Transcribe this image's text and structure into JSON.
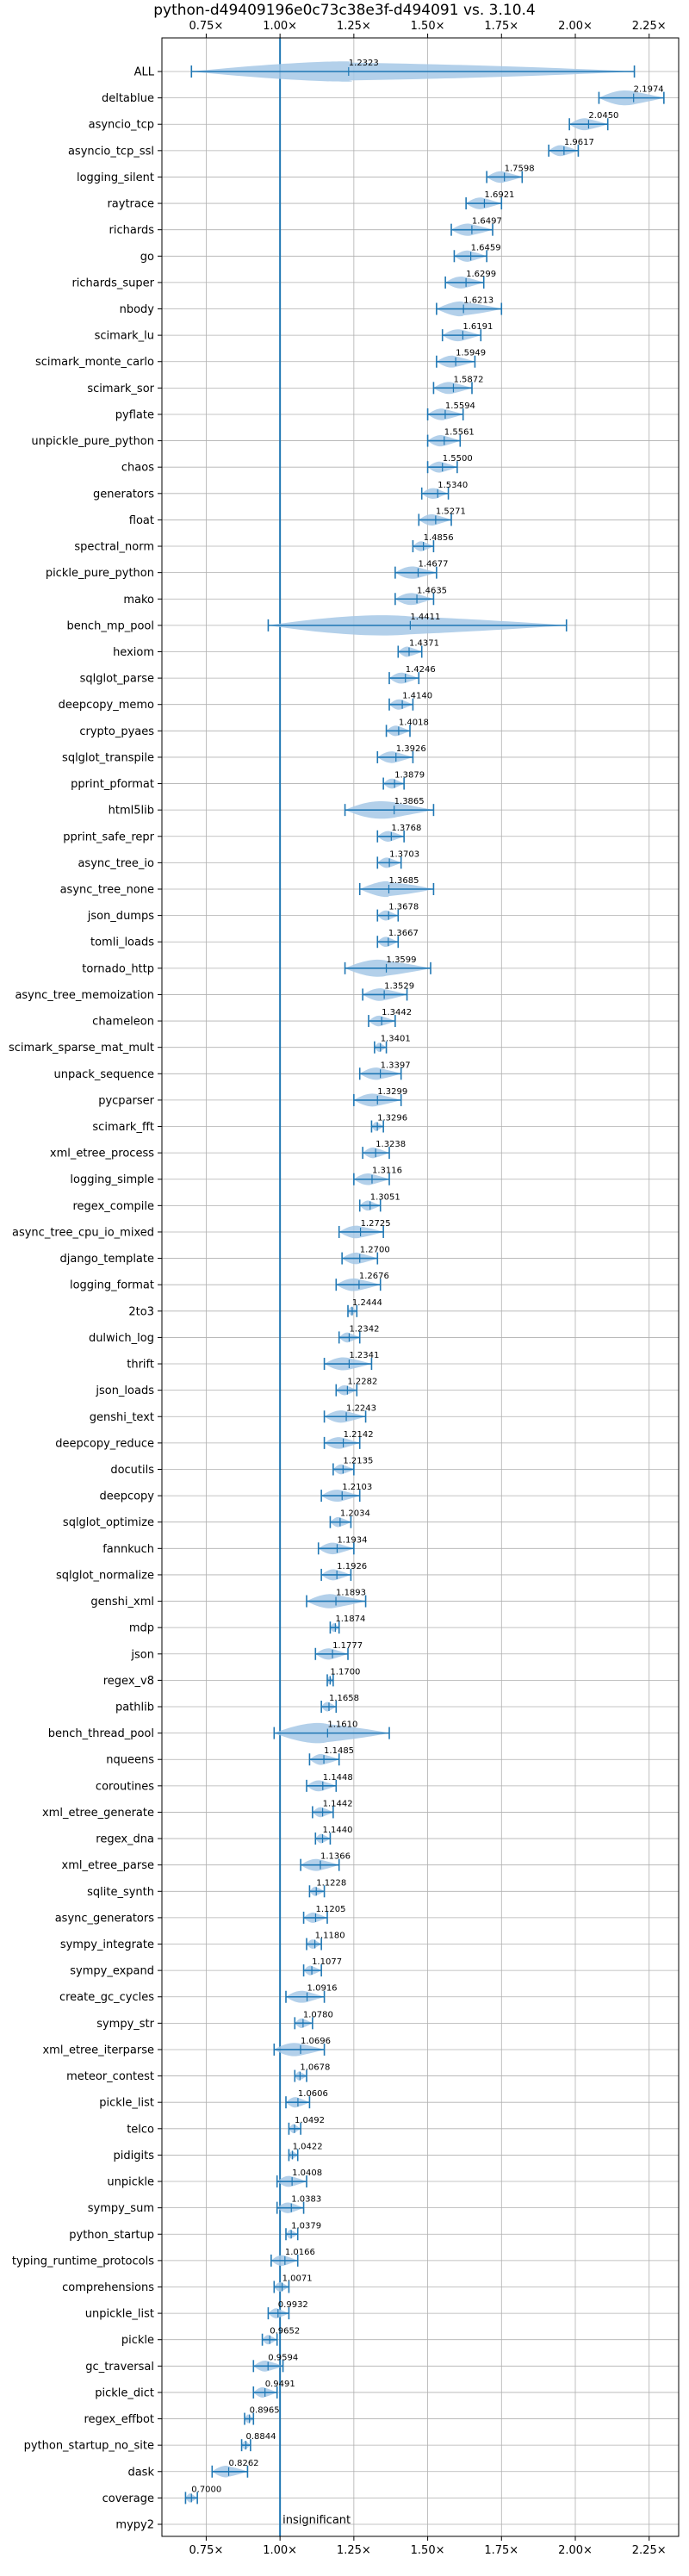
{
  "chart_data": {
    "type": "violin",
    "title": "python-d49409196e0c73c38e3f-d494091 vs. 3.10.4",
    "xlim": [
      0.6,
      2.35
    ],
    "xticks": [
      0.75,
      1.0,
      1.25,
      1.5,
      1.75,
      2.0,
      2.25
    ],
    "xtick_labels": [
      "0.75×",
      "1.00×",
      "1.25×",
      "1.50×",
      "1.75×",
      "2.00×",
      "2.25×"
    ],
    "ticks_top_and_bottom": true,
    "grid": true,
    "reference_line": {
      "x": 1.0,
      "label": "insignificant"
    },
    "accent_color": "#1f77b4",
    "violin_color": "#a6c8e6",
    "categories": [
      {
        "name": "ALL",
        "label": "1.2323",
        "median": 1.2323,
        "lo": 0.7,
        "hi": 2.2
      },
      {
        "name": "deltablue",
        "label": "2.1974",
        "median": 2.1974,
        "lo": 2.08,
        "hi": 2.3
      },
      {
        "name": "asyncio_tcp",
        "label": "2.0450",
        "median": 2.045,
        "lo": 1.98,
        "hi": 2.11
      },
      {
        "name": "asyncio_tcp_ssl",
        "label": "1.9617",
        "median": 1.9617,
        "lo": 1.91,
        "hi": 2.01
      },
      {
        "name": "logging_silent",
        "label": "1.7598",
        "median": 1.7598,
        "lo": 1.7,
        "hi": 1.82
      },
      {
        "name": "raytrace",
        "label": "1.6921",
        "median": 1.6921,
        "lo": 1.63,
        "hi": 1.75
      },
      {
        "name": "richards",
        "label": "1.6497",
        "median": 1.6497,
        "lo": 1.58,
        "hi": 1.72
      },
      {
        "name": "go",
        "label": "1.6459",
        "median": 1.6459,
        "lo": 1.59,
        "hi": 1.7
      },
      {
        "name": "richards_super",
        "label": "1.6299",
        "median": 1.6299,
        "lo": 1.56,
        "hi": 1.69
      },
      {
        "name": "nbody",
        "label": "1.6213",
        "median": 1.6213,
        "lo": 1.53,
        "hi": 1.75
      },
      {
        "name": "scimark_lu",
        "label": "1.6191",
        "median": 1.6191,
        "lo": 1.55,
        "hi": 1.68
      },
      {
        "name": "scimark_monte_carlo",
        "label": "1.5949",
        "median": 1.5949,
        "lo": 1.53,
        "hi": 1.66
      },
      {
        "name": "scimark_sor",
        "label": "1.5872",
        "median": 1.5872,
        "lo": 1.52,
        "hi": 1.65
      },
      {
        "name": "pyflate",
        "label": "1.5594",
        "median": 1.5594,
        "lo": 1.5,
        "hi": 1.62
      },
      {
        "name": "unpickle_pure_python",
        "label": "1.5561",
        "median": 1.5561,
        "lo": 1.5,
        "hi": 1.61
      },
      {
        "name": "chaos",
        "label": "1.5500",
        "median": 1.55,
        "lo": 1.5,
        "hi": 1.6
      },
      {
        "name": "generators",
        "label": "1.5340",
        "median": 1.534,
        "lo": 1.48,
        "hi": 1.57
      },
      {
        "name": "float",
        "label": "1.5271",
        "median": 1.5271,
        "lo": 1.47,
        "hi": 1.58
      },
      {
        "name": "spectral_norm",
        "label": "1.4856",
        "median": 1.4856,
        "lo": 1.45,
        "hi": 1.52
      },
      {
        "name": "pickle_pure_python",
        "label": "1.4677",
        "median": 1.4677,
        "lo": 1.39,
        "hi": 1.53
      },
      {
        "name": "mako",
        "label": "1.4635",
        "median": 1.4635,
        "lo": 1.39,
        "hi": 1.52
      },
      {
        "name": "bench_mp_pool",
        "label": "1.4411",
        "median": 1.4411,
        "lo": 0.96,
        "hi": 1.97
      },
      {
        "name": "hexiom",
        "label": "1.4371",
        "median": 1.4371,
        "lo": 1.4,
        "hi": 1.48
      },
      {
        "name": "sqlglot_parse",
        "label": "1.4246",
        "median": 1.4246,
        "lo": 1.37,
        "hi": 1.47
      },
      {
        "name": "deepcopy_memo",
        "label": "1.4140",
        "median": 1.414,
        "lo": 1.37,
        "hi": 1.45
      },
      {
        "name": "crypto_pyaes",
        "label": "1.4018",
        "median": 1.4018,
        "lo": 1.36,
        "hi": 1.44
      },
      {
        "name": "sqlglot_transpile",
        "label": "1.3926",
        "median": 1.3926,
        "lo": 1.33,
        "hi": 1.45
      },
      {
        "name": "pprint_pformat",
        "label": "1.3879",
        "median": 1.3879,
        "lo": 1.35,
        "hi": 1.42
      },
      {
        "name": "html5lib",
        "label": "1.3865",
        "median": 1.3865,
        "lo": 1.22,
        "hi": 1.52
      },
      {
        "name": "pprint_safe_repr",
        "label": "1.3768",
        "median": 1.3768,
        "lo": 1.33,
        "hi": 1.42
      },
      {
        "name": "async_tree_io",
        "label": "1.3703",
        "median": 1.3703,
        "lo": 1.33,
        "hi": 1.41
      },
      {
        "name": "async_tree_none",
        "label": "1.3685",
        "median": 1.3685,
        "lo": 1.27,
        "hi": 1.52
      },
      {
        "name": "json_dumps",
        "label": "1.3678",
        "median": 1.3678,
        "lo": 1.33,
        "hi": 1.4
      },
      {
        "name": "tomli_loads",
        "label": "1.3667",
        "median": 1.3667,
        "lo": 1.33,
        "hi": 1.4
      },
      {
        "name": "tornado_http",
        "label": "1.3599",
        "median": 1.3599,
        "lo": 1.22,
        "hi": 1.51
      },
      {
        "name": "async_tree_memoization",
        "label": "1.3529",
        "median": 1.3529,
        "lo": 1.28,
        "hi": 1.43
      },
      {
        "name": "chameleon",
        "label": "1.3442",
        "median": 1.3442,
        "lo": 1.3,
        "hi": 1.39
      },
      {
        "name": "scimark_sparse_mat_mult",
        "label": "1.3401",
        "median": 1.3401,
        "lo": 1.32,
        "hi": 1.36
      },
      {
        "name": "unpack_sequence",
        "label": "1.3397",
        "median": 1.3397,
        "lo": 1.27,
        "hi": 1.41
      },
      {
        "name": "pycparser",
        "label": "1.3299",
        "median": 1.3299,
        "lo": 1.25,
        "hi": 1.41
      },
      {
        "name": "scimark_fft",
        "label": "1.3296",
        "median": 1.3296,
        "lo": 1.31,
        "hi": 1.35
      },
      {
        "name": "xml_etree_process",
        "label": "1.3238",
        "median": 1.3238,
        "lo": 1.28,
        "hi": 1.37
      },
      {
        "name": "logging_simple",
        "label": "1.3116",
        "median": 1.3116,
        "lo": 1.25,
        "hi": 1.37
      },
      {
        "name": "regex_compile",
        "label": "1.3051",
        "median": 1.3051,
        "lo": 1.27,
        "hi": 1.34
      },
      {
        "name": "async_tree_cpu_io_mixed",
        "label": "1.2725",
        "median": 1.2725,
        "lo": 1.2,
        "hi": 1.35
      },
      {
        "name": "django_template",
        "label": "1.2700",
        "median": 1.27,
        "lo": 1.21,
        "hi": 1.33
      },
      {
        "name": "logging_format",
        "label": "1.2676",
        "median": 1.2676,
        "lo": 1.19,
        "hi": 1.34
      },
      {
        "name": "2to3",
        "label": "1.2444",
        "median": 1.2444,
        "lo": 1.23,
        "hi": 1.26
      },
      {
        "name": "dulwich_log",
        "label": "1.2342",
        "median": 1.2342,
        "lo": 1.2,
        "hi": 1.27
      },
      {
        "name": "thrift",
        "label": "1.2341",
        "median": 1.2341,
        "lo": 1.15,
        "hi": 1.31
      },
      {
        "name": "json_loads",
        "label": "1.2282",
        "median": 1.2282,
        "lo": 1.19,
        "hi": 1.26
      },
      {
        "name": "genshi_text",
        "label": "1.2243",
        "median": 1.2243,
        "lo": 1.15,
        "hi": 1.29
      },
      {
        "name": "deepcopy_reduce",
        "label": "1.2142",
        "median": 1.2142,
        "lo": 1.15,
        "hi": 1.27
      },
      {
        "name": "docutils",
        "label": "1.2135",
        "median": 1.2135,
        "lo": 1.18,
        "hi": 1.25
      },
      {
        "name": "deepcopy",
        "label": "1.2103",
        "median": 1.2103,
        "lo": 1.14,
        "hi": 1.27
      },
      {
        "name": "sqlglot_optimize",
        "label": "1.2034",
        "median": 1.2034,
        "lo": 1.17,
        "hi": 1.24
      },
      {
        "name": "fannkuch",
        "label": "1.1934",
        "median": 1.1934,
        "lo": 1.13,
        "hi": 1.25
      },
      {
        "name": "sqlglot_normalize",
        "label": "1.1926",
        "median": 1.1926,
        "lo": 1.14,
        "hi": 1.24
      },
      {
        "name": "genshi_xml",
        "label": "1.1893",
        "median": 1.1893,
        "lo": 1.09,
        "hi": 1.29
      },
      {
        "name": "mdp",
        "label": "1.1874",
        "median": 1.1874,
        "lo": 1.17,
        "hi": 1.2
      },
      {
        "name": "json",
        "label": "1.1777",
        "median": 1.1777,
        "lo": 1.12,
        "hi": 1.23
      },
      {
        "name": "regex_v8",
        "label": "1.1700",
        "median": 1.17,
        "lo": 1.16,
        "hi": 1.18
      },
      {
        "name": "pathlib",
        "label": "1.1658",
        "median": 1.1658,
        "lo": 1.14,
        "hi": 1.19
      },
      {
        "name": "bench_thread_pool",
        "label": "1.1610",
        "median": 1.161,
        "lo": 0.98,
        "hi": 1.37
      },
      {
        "name": "nqueens",
        "label": "1.1485",
        "median": 1.1485,
        "lo": 1.1,
        "hi": 1.2
      },
      {
        "name": "coroutines",
        "label": "1.1448",
        "median": 1.1448,
        "lo": 1.09,
        "hi": 1.19
      },
      {
        "name": "xml_etree_generate",
        "label": "1.1442",
        "median": 1.1442,
        "lo": 1.11,
        "hi": 1.18
      },
      {
        "name": "regex_dna",
        "label": "1.1440",
        "median": 1.144,
        "lo": 1.12,
        "hi": 1.17
      },
      {
        "name": "xml_etree_parse",
        "label": "1.1366",
        "median": 1.1366,
        "lo": 1.07,
        "hi": 1.2
      },
      {
        "name": "sqlite_synth",
        "label": "1.1228",
        "median": 1.1228,
        "lo": 1.1,
        "hi": 1.15
      },
      {
        "name": "async_generators",
        "label": "1.1205",
        "median": 1.1205,
        "lo": 1.08,
        "hi": 1.16
      },
      {
        "name": "sympy_integrate",
        "label": "1.1180",
        "median": 1.118,
        "lo": 1.09,
        "hi": 1.14
      },
      {
        "name": "sympy_expand",
        "label": "1.1077",
        "median": 1.1077,
        "lo": 1.08,
        "hi": 1.14
      },
      {
        "name": "create_gc_cycles",
        "label": "1.0916",
        "median": 1.0916,
        "lo": 1.02,
        "hi": 1.15
      },
      {
        "name": "sympy_str",
        "label": "1.0780",
        "median": 1.078,
        "lo": 1.05,
        "hi": 1.11
      },
      {
        "name": "xml_etree_iterparse",
        "label": "1.0696",
        "median": 1.0696,
        "lo": 0.98,
        "hi": 1.15
      },
      {
        "name": "meteor_contest",
        "label": "1.0678",
        "median": 1.0678,
        "lo": 1.05,
        "hi": 1.09
      },
      {
        "name": "pickle_list",
        "label": "1.0606",
        "median": 1.0606,
        "lo": 1.02,
        "hi": 1.1
      },
      {
        "name": "telco",
        "label": "1.0492",
        "median": 1.0492,
        "lo": 1.03,
        "hi": 1.07
      },
      {
        "name": "pidigits",
        "label": "1.0422",
        "median": 1.0422,
        "lo": 1.03,
        "hi": 1.06
      },
      {
        "name": "unpickle",
        "label": "1.0408",
        "median": 1.0408,
        "lo": 0.99,
        "hi": 1.09
      },
      {
        "name": "sympy_sum",
        "label": "1.0383",
        "median": 1.0383,
        "lo": 0.99,
        "hi": 1.08
      },
      {
        "name": "python_startup",
        "label": "1.0379",
        "median": 1.0379,
        "lo": 1.02,
        "hi": 1.06
      },
      {
        "name": "typing_runtime_protocols",
        "label": "1.0166",
        "median": 1.0166,
        "lo": 0.97,
        "hi": 1.06
      },
      {
        "name": "comprehensions",
        "label": "1.0071",
        "median": 1.0071,
        "lo": 0.98,
        "hi": 1.03
      },
      {
        "name": "unpickle_list",
        "label": "0.9932",
        "median": 0.9932,
        "lo": 0.96,
        "hi": 1.03
      },
      {
        "name": "pickle",
        "label": "0.9652",
        "median": 0.9652,
        "lo": 0.94,
        "hi": 0.99
      },
      {
        "name": "gc_traversal",
        "label": "0.9594",
        "median": 0.9594,
        "lo": 0.91,
        "hi": 1.01
      },
      {
        "name": "pickle_dict",
        "label": "0.9491",
        "median": 0.9491,
        "lo": 0.91,
        "hi": 0.99
      },
      {
        "name": "regex_effbot",
        "label": "0.8965",
        "median": 0.8965,
        "lo": 0.88,
        "hi": 0.91
      },
      {
        "name": "python_startup_no_site",
        "label": "0.8844",
        "median": 0.8844,
        "lo": 0.87,
        "hi": 0.9
      },
      {
        "name": "dask",
        "label": "0.8262",
        "median": 0.8262,
        "lo": 0.77,
        "hi": 0.89
      },
      {
        "name": "coverage",
        "label": "0.7000",
        "median": 0.7,
        "lo": 0.68,
        "hi": 0.72
      },
      {
        "name": "mypy2",
        "label": "",
        "median": null,
        "lo": null,
        "hi": null
      }
    ]
  }
}
